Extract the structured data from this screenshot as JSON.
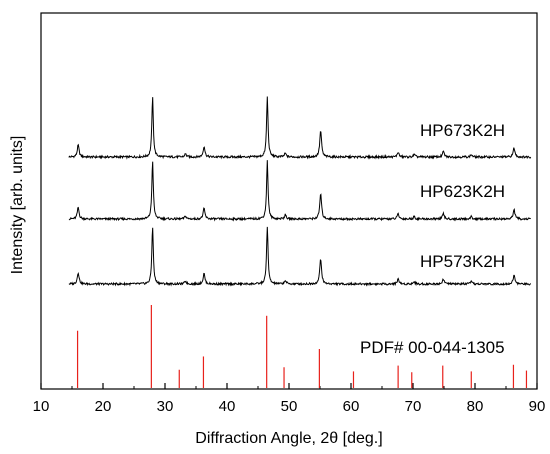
{
  "chart_data": {
    "type": "line",
    "title": "",
    "xlabel": "Diffraction Angle, 2θ [deg.]",
    "ylabel": "Intensity [arb. units]",
    "xlim": [
      10,
      90
    ],
    "xticks": [
      10,
      20,
      30,
      40,
      50,
      60,
      70,
      80,
      90
    ],
    "y_axis_scale": "arbitrary, no tick labels; patterns vertically offset",
    "grid": false,
    "legend": "labels placed beside each pattern",
    "series": [
      {
        "name": "HP673K2H",
        "color": "#000000",
        "peaks": [
          {
            "two_theta": 16.0,
            "rel_intensity": 0.2
          },
          {
            "two_theta": 28.0,
            "rel_intensity": 1.0
          },
          {
            "two_theta": 33.3,
            "rel_intensity": 0.05
          },
          {
            "two_theta": 36.3,
            "rel_intensity": 0.18
          },
          {
            "two_theta": 46.5,
            "rel_intensity": 1.0
          },
          {
            "two_theta": 49.4,
            "rel_intensity": 0.06
          },
          {
            "two_theta": 55.1,
            "rel_intensity": 0.44
          },
          {
            "two_theta": 67.6,
            "rel_intensity": 0.08
          },
          {
            "two_theta": 70.2,
            "rel_intensity": 0.04
          },
          {
            "two_theta": 74.9,
            "rel_intensity": 0.09
          },
          {
            "two_theta": 79.4,
            "rel_intensity": 0.04
          },
          {
            "two_theta": 86.3,
            "rel_intensity": 0.15
          }
        ]
      },
      {
        "name": "HP623K2H",
        "color": "#000000",
        "peaks": [
          {
            "two_theta": 16.0,
            "rel_intensity": 0.2
          },
          {
            "two_theta": 28.0,
            "rel_intensity": 1.0
          },
          {
            "two_theta": 33.3,
            "rel_intensity": 0.05
          },
          {
            "two_theta": 36.3,
            "rel_intensity": 0.18
          },
          {
            "two_theta": 46.5,
            "rel_intensity": 1.0
          },
          {
            "two_theta": 49.4,
            "rel_intensity": 0.07
          },
          {
            "two_theta": 55.1,
            "rel_intensity": 0.44
          },
          {
            "two_theta": 67.6,
            "rel_intensity": 0.09
          },
          {
            "two_theta": 70.2,
            "rel_intensity": 0.04
          },
          {
            "two_theta": 74.9,
            "rel_intensity": 0.09
          },
          {
            "two_theta": 79.4,
            "rel_intensity": 0.04
          },
          {
            "two_theta": 86.3,
            "rel_intensity": 0.16
          }
        ]
      },
      {
        "name": "HP573K2H",
        "color": "#000000",
        "peaks": [
          {
            "two_theta": 16.0,
            "rel_intensity": 0.2
          },
          {
            "two_theta": 28.0,
            "rel_intensity": 1.0
          },
          {
            "two_theta": 33.3,
            "rel_intensity": 0.05
          },
          {
            "two_theta": 36.3,
            "rel_intensity": 0.18
          },
          {
            "two_theta": 46.5,
            "rel_intensity": 1.0
          },
          {
            "two_theta": 49.4,
            "rel_intensity": 0.06
          },
          {
            "two_theta": 55.1,
            "rel_intensity": 0.44
          },
          {
            "two_theta": 67.6,
            "rel_intensity": 0.09
          },
          {
            "two_theta": 70.2,
            "rel_intensity": 0.04
          },
          {
            "two_theta": 74.9,
            "rel_intensity": 0.09
          },
          {
            "two_theta": 79.4,
            "rel_intensity": 0.04
          },
          {
            "two_theta": 86.3,
            "rel_intensity": 0.15
          }
        ]
      }
    ],
    "reference": {
      "name": "PDF# 00-044-1305",
      "color": "#e8211b",
      "lines": [
        {
          "two_theta": 15.9,
          "rel_intensity": 0.69
        },
        {
          "two_theta": 27.8,
          "rel_intensity": 1.0
        },
        {
          "two_theta": 32.3,
          "rel_intensity": 0.22
        },
        {
          "two_theta": 36.2,
          "rel_intensity": 0.38
        },
        {
          "two_theta": 46.4,
          "rel_intensity": 0.87
        },
        {
          "two_theta": 49.2,
          "rel_intensity": 0.25
        },
        {
          "two_theta": 54.9,
          "rel_intensity": 0.47
        },
        {
          "two_theta": 60.4,
          "rel_intensity": 0.2
        },
        {
          "two_theta": 67.6,
          "rel_intensity": 0.27
        },
        {
          "two_theta": 69.8,
          "rel_intensity": 0.19
        },
        {
          "two_theta": 74.8,
          "rel_intensity": 0.27
        },
        {
          "two_theta": 79.4,
          "rel_intensity": 0.2
        },
        {
          "two_theta": 86.2,
          "rel_intensity": 0.28
        },
        {
          "two_theta": 88.3,
          "rel_intensity": 0.21
        }
      ]
    }
  }
}
